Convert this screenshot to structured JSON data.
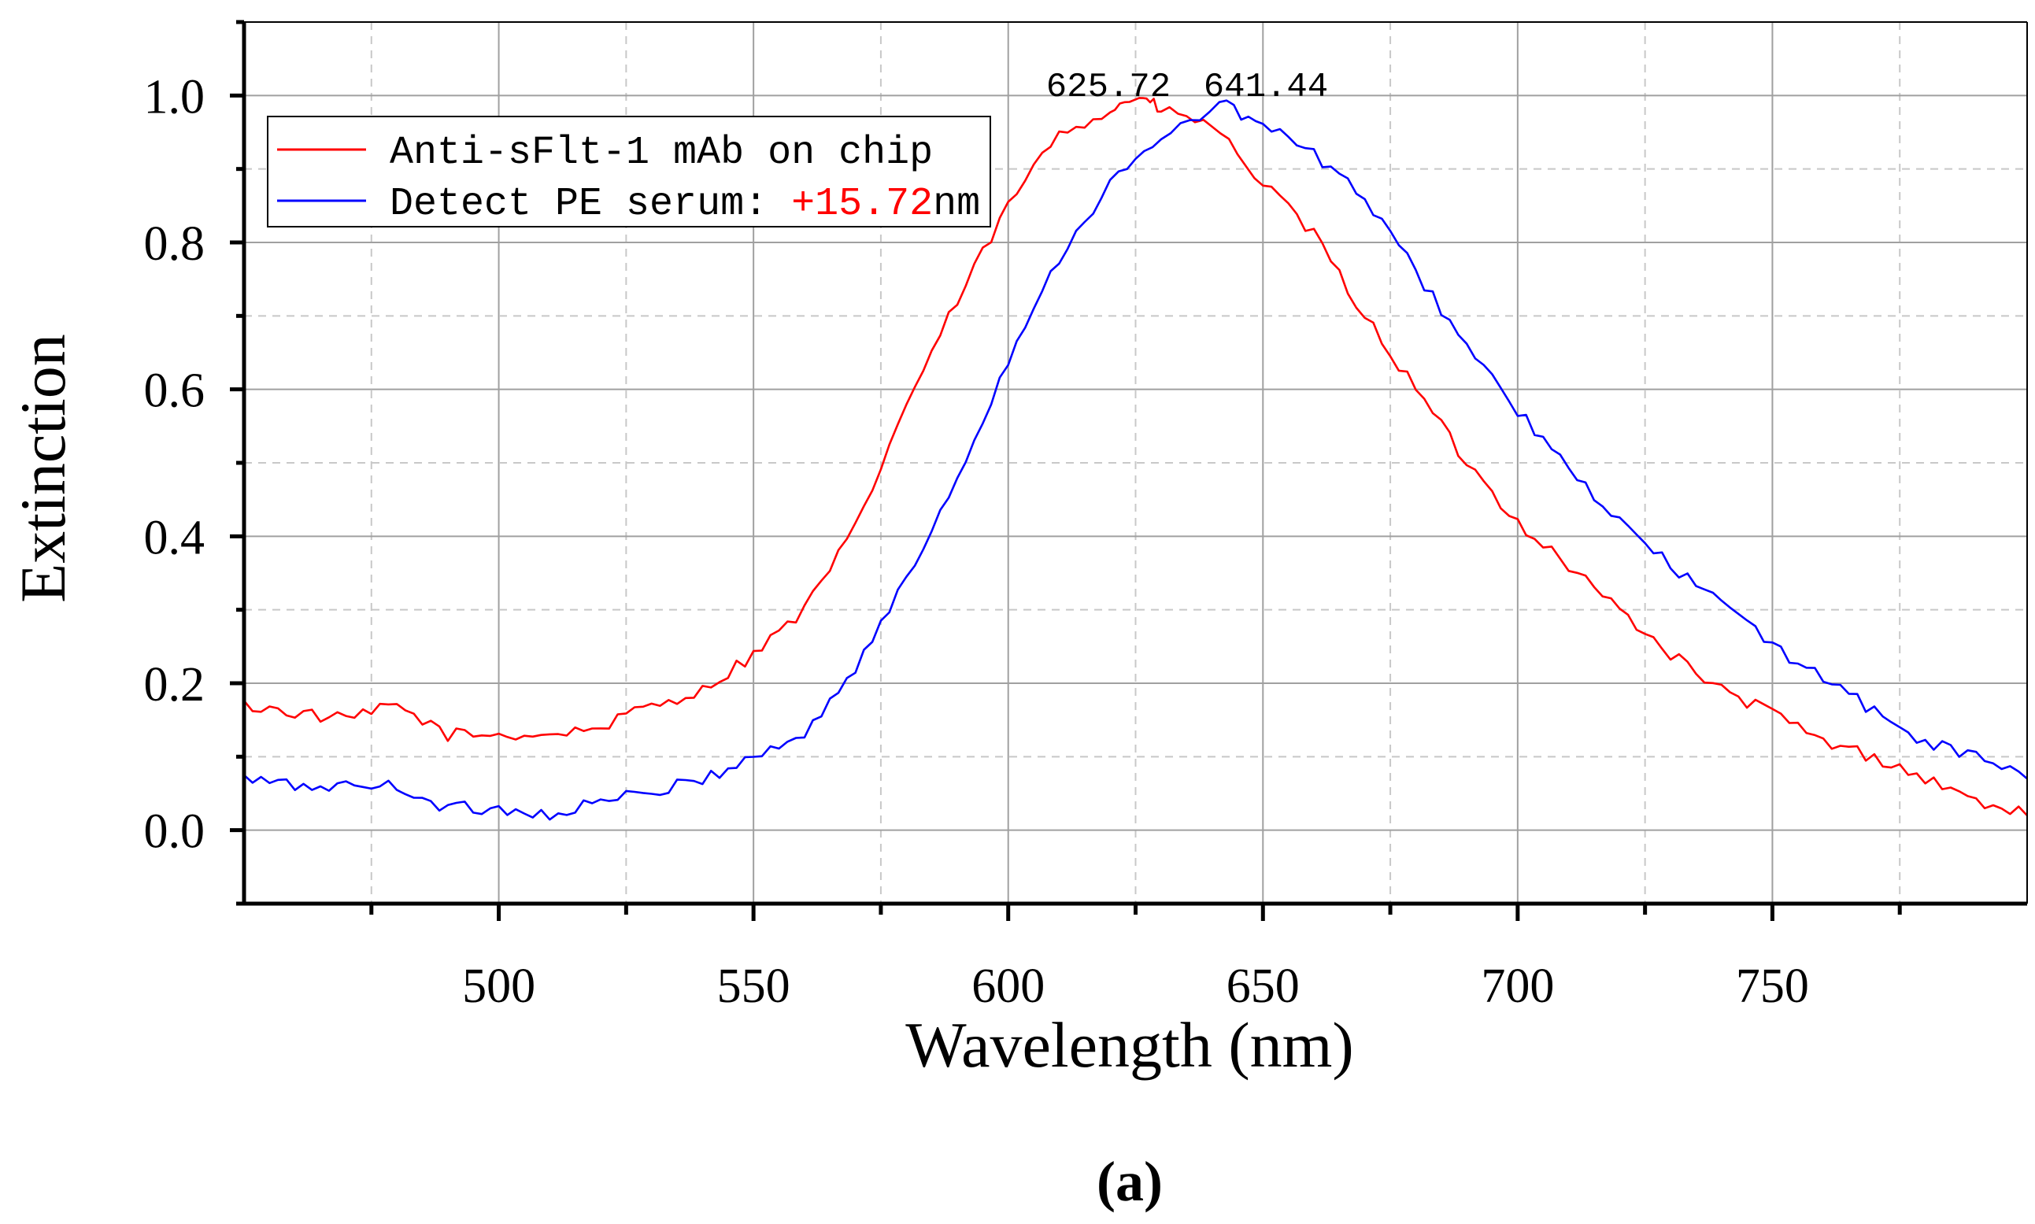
{
  "chart_data": {
    "type": "line",
    "xlabel": "Wavelength (nm)",
    "ylabel": "Extinction",
    "xlim": [
      450,
      800
    ],
    "ylim": [
      -0.1,
      1.1
    ],
    "x_ticks": [
      500,
      550,
      600,
      650,
      700,
      750
    ],
    "y_ticks": [
      0.0,
      0.2,
      0.4,
      0.6,
      0.8,
      1.0
    ],
    "x_tick_labels": [
      "500",
      "550",
      "600",
      "650",
      "700",
      "750"
    ],
    "y_tick_labels": [
      "0.0",
      "0.2",
      "0.4",
      "0.6",
      "0.8",
      "1.0"
    ],
    "grid": true,
    "legend_position": "top-left",
    "legend": {
      "entry1": "Anti-sFlt-1 mAb on chip",
      "entry2_prefix": "Detect PE serum: ",
      "entry2_shift": "+15.72",
      "entry2_unit": "nm"
    },
    "annotations": {
      "peak1": "625.72",
      "peak2": "641.44"
    },
    "series": [
      {
        "name": "Anti-sFlt-1 mAb on chip",
        "color": "#ff0000",
        "peak_wavelength": 625.72,
        "x": [
          450,
          460,
          470,
          480,
          490,
          500,
          510,
          520,
          530,
          540,
          550,
          560,
          570,
          580,
          590,
          600,
          610,
          620,
          625.72,
          630,
          640,
          650,
          660,
          670,
          680,
          690,
          700,
          710,
          720,
          730,
          740,
          750,
          760,
          770,
          780,
          790,
          800
        ],
        "values": [
          0.17,
          0.16,
          0.15,
          0.17,
          0.13,
          0.13,
          0.13,
          0.14,
          0.17,
          0.19,
          0.24,
          0.3,
          0.41,
          0.58,
          0.72,
          0.85,
          0.95,
          0.98,
          1.0,
          0.98,
          0.96,
          0.88,
          0.81,
          0.7,
          0.6,
          0.5,
          0.42,
          0.36,
          0.3,
          0.24,
          0.19,
          0.16,
          0.12,
          0.1,
          0.07,
          0.04,
          0.02
        ]
      },
      {
        "name": "Detect PE serum",
        "color": "#0000ff",
        "peak_wavelength": 641.44,
        "x": [
          450,
          460,
          470,
          480,
          490,
          500,
          510,
          520,
          530,
          540,
          550,
          560,
          570,
          580,
          590,
          600,
          610,
          620,
          630,
          641.44,
          650,
          660,
          670,
          680,
          690,
          700,
          710,
          720,
          730,
          740,
          750,
          760,
          770,
          780,
          790,
          800
        ],
        "values": [
          0.07,
          0.06,
          0.06,
          0.06,
          0.03,
          0.03,
          0.02,
          0.04,
          0.05,
          0.07,
          0.1,
          0.13,
          0.22,
          0.34,
          0.48,
          0.64,
          0.78,
          0.88,
          0.94,
          0.99,
          0.96,
          0.92,
          0.86,
          0.76,
          0.66,
          0.57,
          0.49,
          0.42,
          0.36,
          0.31,
          0.25,
          0.21,
          0.16,
          0.12,
          0.1,
          0.07
        ]
      }
    ]
  },
  "figure": {
    "panel_label": "(a)"
  }
}
